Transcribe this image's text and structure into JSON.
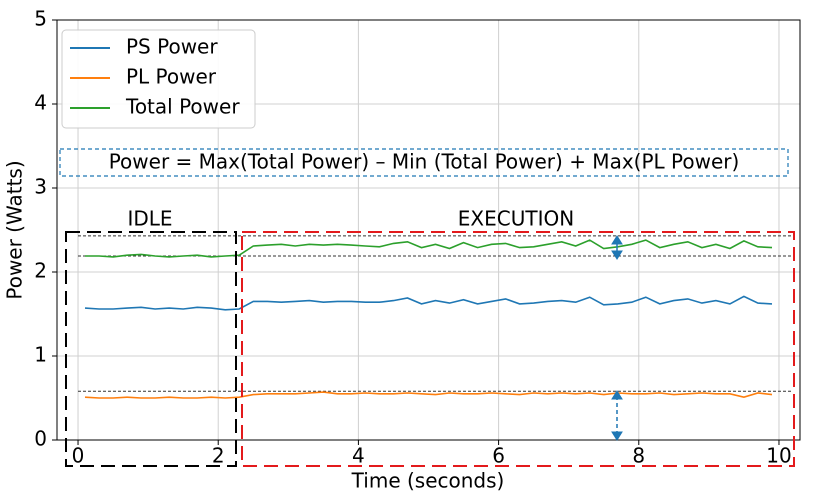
{
  "chart_data": {
    "type": "line",
    "xlabel": "Time (seconds)",
    "ylabel": "Power (Watts)",
    "annotations": [
      "Power = Max(Total Power) – Min (Total Power) + Max(PL Power)",
      "IDLE",
      "EXECUTION"
    ],
    "xlim": [
      -0.3,
      10.3
    ],
    "ylim": [
      0,
      5
    ],
    "xticks": [
      0,
      2,
      4,
      6,
      8,
      10
    ],
    "yticks": [
      0,
      1,
      2,
      3,
      4,
      5
    ],
    "grid": true,
    "legend": "upper left",
    "reference_lines": [
      2.43,
      2.19,
      0.58
    ],
    "x": [
      0.1,
      0.3,
      0.5,
      0.7,
      0.9,
      1.1,
      1.3,
      1.5,
      1.7,
      1.9,
      2.1,
      2.3,
      2.5,
      2.7,
      2.9,
      3.1,
      3.3,
      3.5,
      3.7,
      3.9,
      4.1,
      4.3,
      4.5,
      4.7,
      4.9,
      5.1,
      5.3,
      5.5,
      5.7,
      5.9,
      6.1,
      6.3,
      6.5,
      6.7,
      6.9,
      7.1,
      7.3,
      7.5,
      7.7,
      7.9,
      8.1,
      8.3,
      8.5,
      8.7,
      8.9,
      9.1,
      9.3,
      9.5,
      9.7,
      9.9
    ],
    "series": [
      {
        "name": "PS Power",
        "color": "#1f77b4",
        "values": [
          1.57,
          1.56,
          1.56,
          1.57,
          1.58,
          1.56,
          1.57,
          1.56,
          1.58,
          1.57,
          1.55,
          1.56,
          1.65,
          1.65,
          1.64,
          1.65,
          1.66,
          1.64,
          1.65,
          1.65,
          1.64,
          1.64,
          1.66,
          1.69,
          1.62,
          1.66,
          1.63,
          1.67,
          1.62,
          1.65,
          1.68,
          1.62,
          1.63,
          1.65,
          1.66,
          1.64,
          1.7,
          1.61,
          1.62,
          1.64,
          1.7,
          1.62,
          1.66,
          1.68,
          1.63,
          1.66,
          1.62,
          1.71,
          1.63,
          1.62
        ]
      },
      {
        "name": "PL Power",
        "color": "#ff7f0e",
        "values": [
          0.51,
          0.5,
          0.5,
          0.51,
          0.5,
          0.5,
          0.51,
          0.5,
          0.5,
          0.51,
          0.5,
          0.51,
          0.54,
          0.55,
          0.55,
          0.55,
          0.56,
          0.57,
          0.55,
          0.55,
          0.56,
          0.55,
          0.55,
          0.56,
          0.55,
          0.54,
          0.56,
          0.55,
          0.55,
          0.56,
          0.55,
          0.54,
          0.56,
          0.55,
          0.56,
          0.55,
          0.56,
          0.54,
          0.56,
          0.55,
          0.55,
          0.56,
          0.54,
          0.55,
          0.56,
          0.55,
          0.55,
          0.51,
          0.56,
          0.54
        ]
      },
      {
        "name": "Total Power",
        "color": "#2ca02c",
        "values": [
          2.19,
          2.19,
          2.18,
          2.2,
          2.21,
          2.19,
          2.18,
          2.19,
          2.2,
          2.18,
          2.19,
          2.2,
          2.31,
          2.32,
          2.33,
          2.31,
          2.33,
          2.32,
          2.33,
          2.32,
          2.31,
          2.3,
          2.34,
          2.36,
          2.29,
          2.33,
          2.28,
          2.35,
          2.29,
          2.33,
          2.34,
          2.29,
          2.3,
          2.33,
          2.36,
          2.31,
          2.38,
          2.28,
          2.3,
          2.33,
          2.38,
          2.29,
          2.33,
          2.36,
          2.29,
          2.33,
          2.28,
          2.37,
          2.3,
          2.29
        ]
      }
    ]
  }
}
